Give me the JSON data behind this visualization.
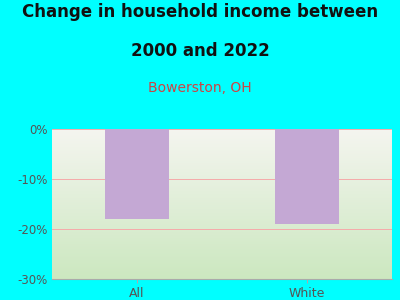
{
  "title_line1": "Change in household income between",
  "title_line2": "2000 and 2022",
  "subtitle": "Bowerston, OH",
  "categories": [
    "All",
    "White"
  ],
  "values": [
    -18.0,
    -19.0
  ],
  "bar_color": "#c4a8d4",
  "background_color": "#00FFFF",
  "plot_bg_top": "#f5f5f0",
  "plot_bg_bottom": "#cce8c0",
  "ylim_min": -30,
  "ylim_max": 0,
  "yticks": [
    0,
    -10,
    -20,
    -30
  ],
  "ytick_labels": [
    "0%",
    "-10%",
    "-20%",
    "-30%"
  ],
  "title_fontsize": 12,
  "subtitle_fontsize": 10,
  "subtitle_color": "#cc4444",
  "tick_label_color": "#555555",
  "grid_color": "#f5aaaa",
  "title_color": "#111111",
  "bar_width": 0.38
}
